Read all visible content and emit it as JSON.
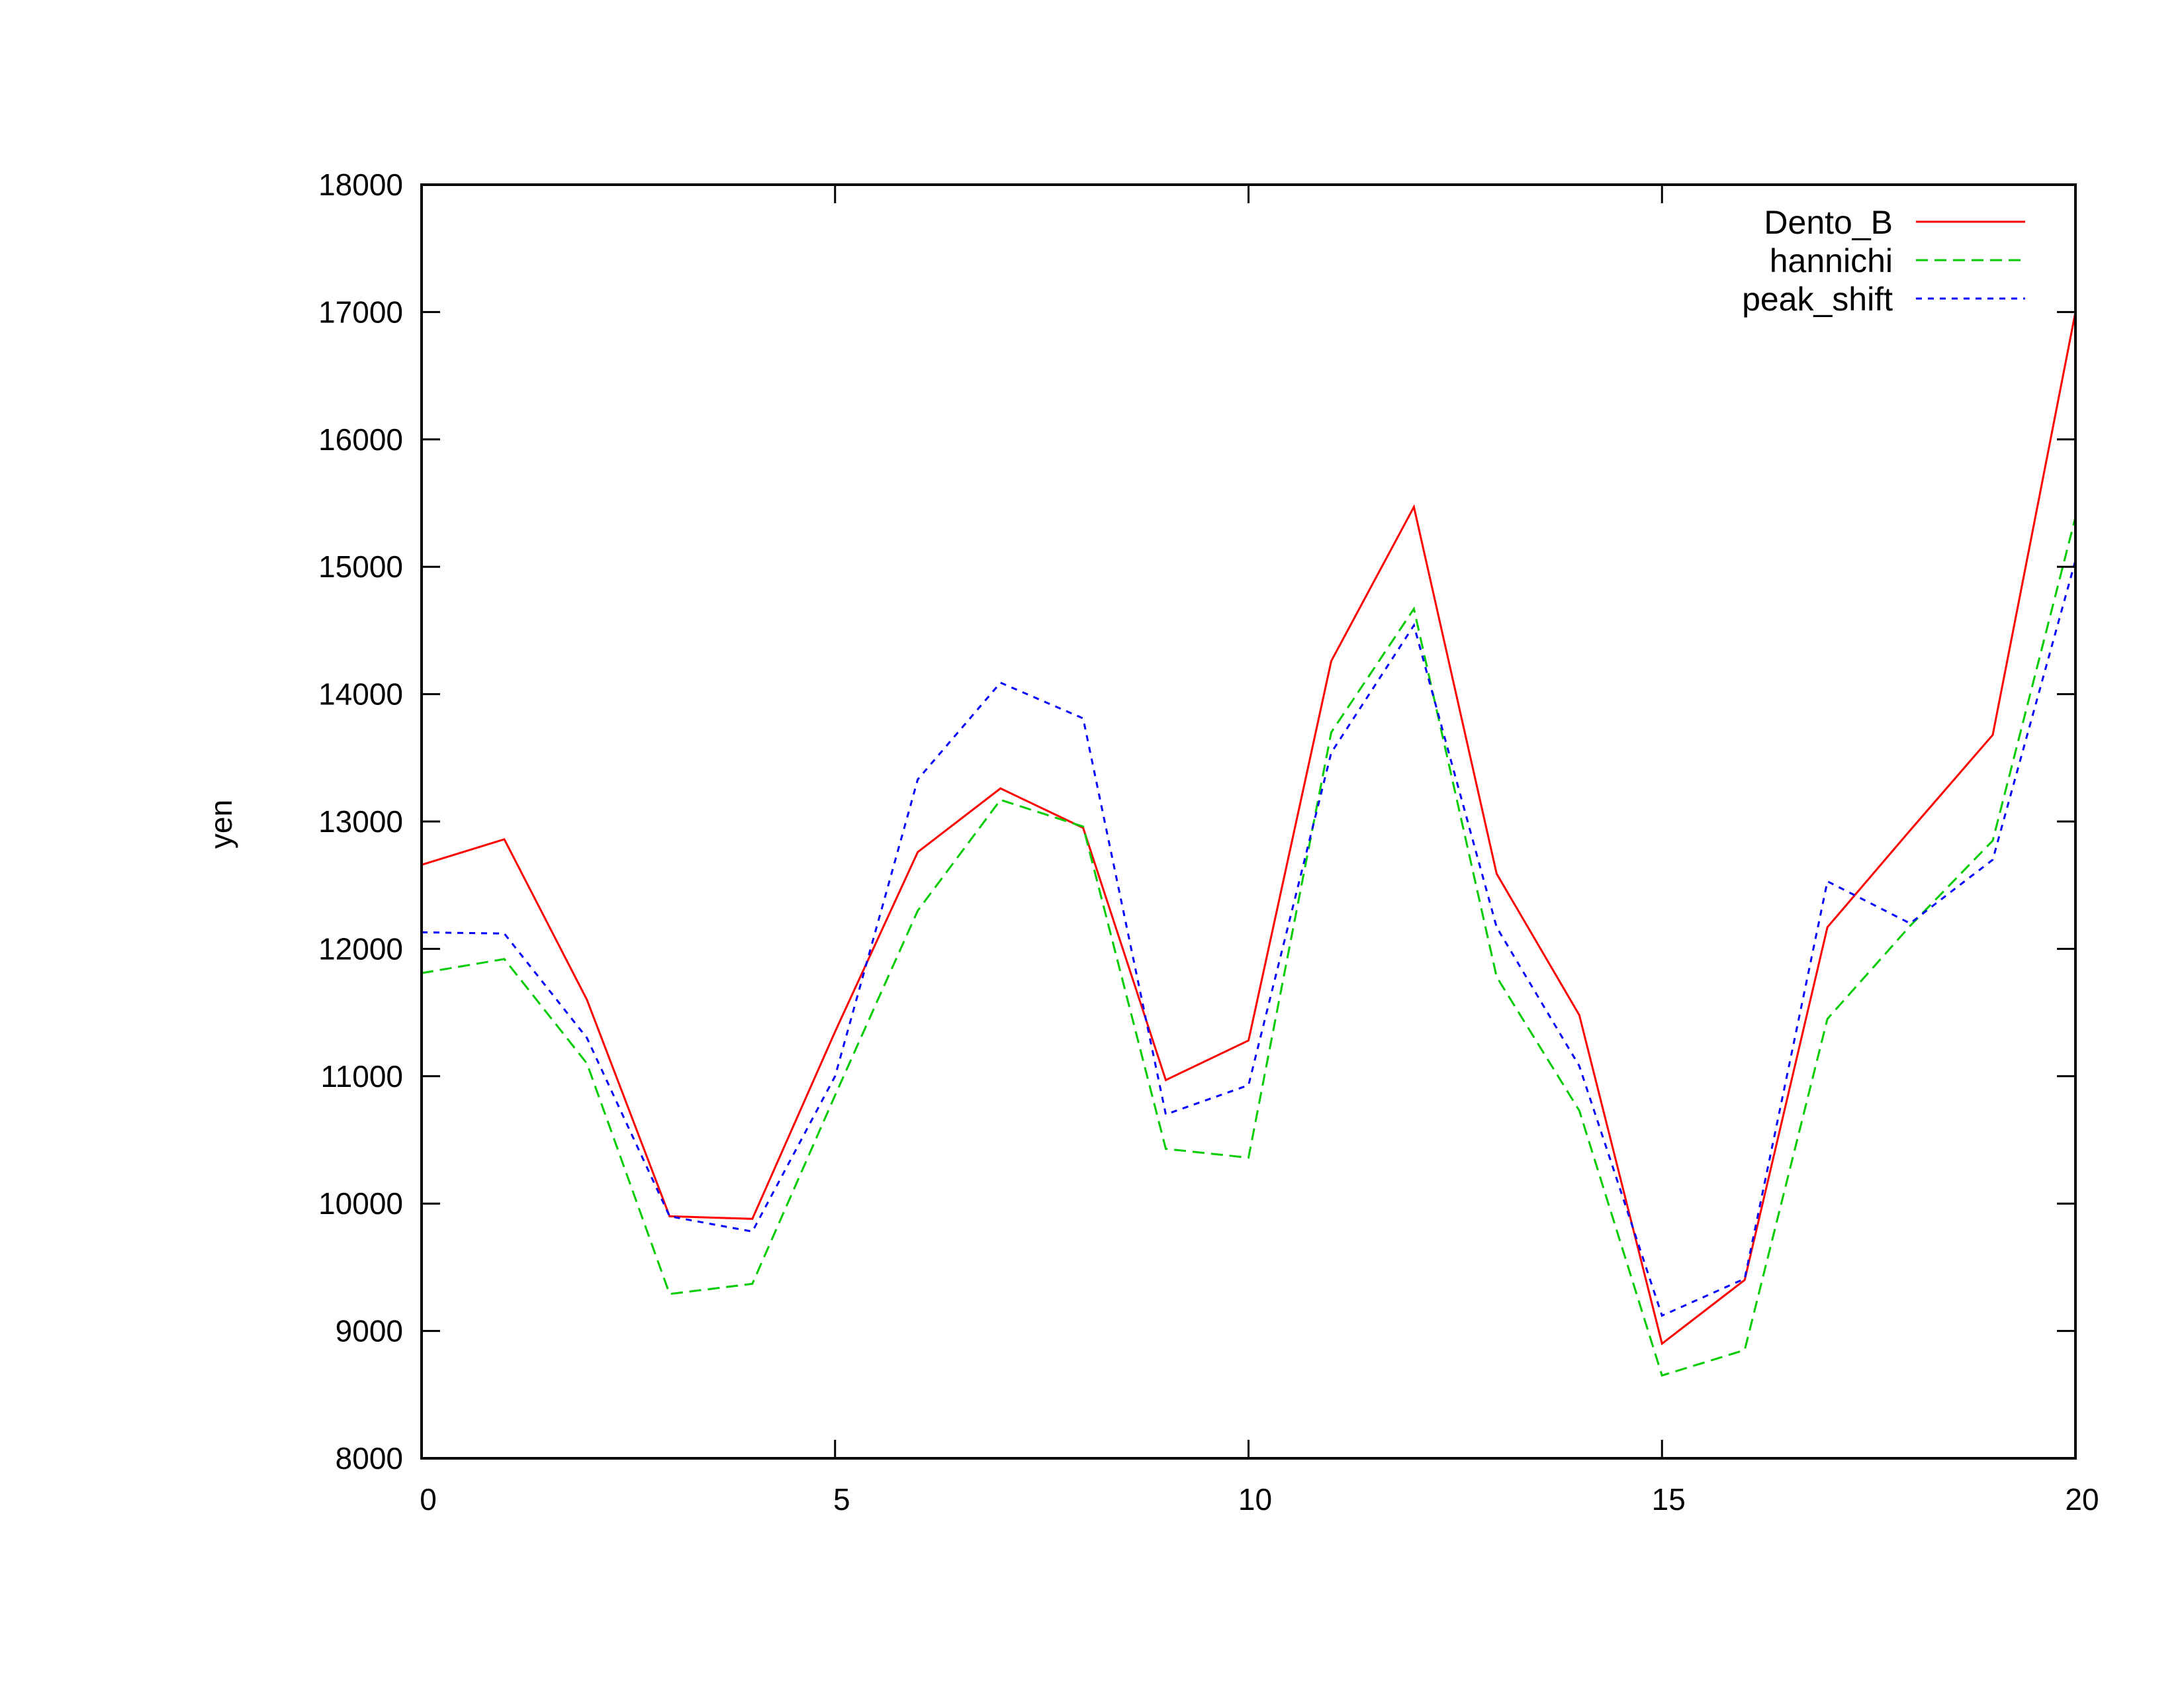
{
  "chart_data": {
    "type": "line",
    "title": "",
    "xlabel": "",
    "ylabel": "yen",
    "xlim": [
      0,
      20
    ],
    "ylim": [
      8000,
      18000
    ],
    "xticks": [
      0,
      5,
      10,
      15,
      20
    ],
    "yticks": [
      8000,
      9000,
      10000,
      11000,
      12000,
      13000,
      14000,
      15000,
      16000,
      17000,
      18000
    ],
    "grid": false,
    "legend_position": "top-right",
    "x": [
      0,
      1,
      2,
      3,
      4,
      5,
      6,
      7,
      8,
      9,
      10,
      11,
      12,
      13,
      14,
      15,
      16,
      17,
      18,
      19,
      20
    ],
    "series": [
      {
        "name": "Dento_B",
        "color": "#ff0000",
        "dash": "solid",
        "values": [
          12660,
          12860,
          11600,
          9900,
          9880,
          11350,
          12760,
          13260,
          12950,
          10970,
          11280,
          14260,
          15470,
          12590,
          11480,
          8900,
          9400,
          12170,
          12930,
          13680,
          17000
        ]
      },
      {
        "name": "hannichi",
        "color": "#00cc00",
        "dash": "dashed",
        "values": [
          11810,
          11920,
          11100,
          9290,
          9370,
          10850,
          12300,
          13170,
          12960,
          10430,
          10360,
          13700,
          14670,
          11780,
          10730,
          8650,
          8850,
          11450,
          12180,
          12850,
          15390
        ]
      },
      {
        "name": "peak_shift",
        "color": "#0000ff",
        "dash": "dotted",
        "values": [
          12130,
          12120,
          11300,
          9900,
          9780,
          11000,
          13330,
          14090,
          13810,
          10700,
          10930,
          13540,
          14540,
          12170,
          11080,
          9120,
          9410,
          12530,
          12200,
          12700,
          15050
        ]
      }
    ]
  }
}
